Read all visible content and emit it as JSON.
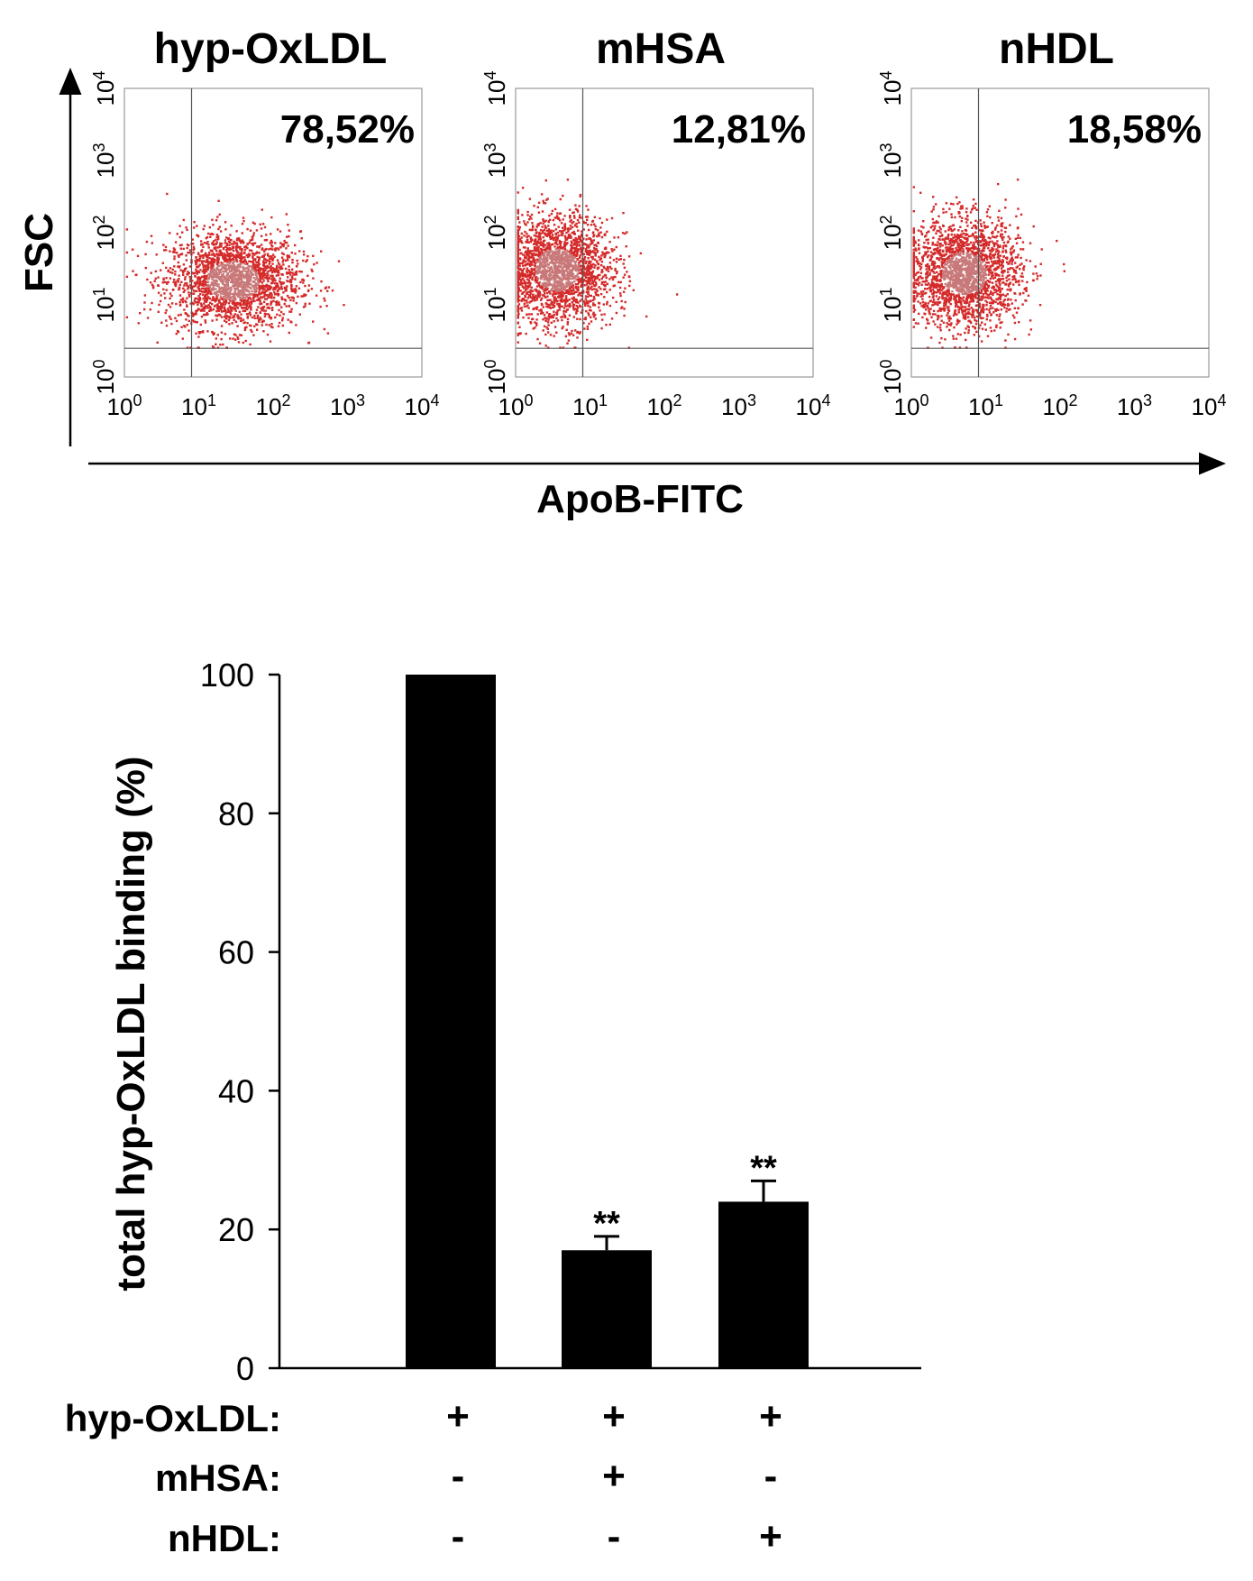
{
  "chart_data": [
    {
      "type": "scatter",
      "subtype": "flow-cytometry-dot-plots",
      "x_axis_label": "ApoB-FITC",
      "y_axis_label": "FSC",
      "x_scale": "log",
      "y_scale": "log",
      "xlim": [
        1,
        10000
      ],
      "ylim": [
        1,
        10000
      ],
      "tick_labels": [
        "10",
        "10",
        "10",
        "10",
        "10"
      ],
      "tick_exponents": [
        "0",
        "1",
        "2",
        "3",
        "4"
      ],
      "gate_x": 8,
      "gate_y": 2.5,
      "panels": [
        {
          "title": "hyp-OxLDL",
          "percent_label": "78,52%",
          "center_log_x": 1.45,
          "center_log_y": 1.35,
          "spread_log_x": 0.6,
          "spread_log_y": 0.45
        },
        {
          "title": "mHSA",
          "percent_label": "12,81%",
          "center_log_x": 0.55,
          "center_log_y": 1.5,
          "spread_log_x": 0.5,
          "spread_log_y": 0.5
        },
        {
          "title": "nHDL",
          "percent_label": "18,58%",
          "center_log_x": 0.7,
          "center_log_y": 1.45,
          "spread_log_x": 0.5,
          "spread_log_y": 0.5
        }
      ]
    },
    {
      "type": "bar",
      "ylabel": "total hyp-OxLDL binding (%)",
      "ylim": [
        0,
        100
      ],
      "yticks": [
        "0",
        "20",
        "40",
        "60",
        "80",
        "100"
      ],
      "ytick_values": [
        0,
        20,
        40,
        60,
        80,
        100
      ],
      "values": [
        100,
        17,
        24
      ],
      "errors": [
        0,
        2,
        3
      ],
      "significance": [
        "",
        "**",
        "**"
      ],
      "conditions": [
        {
          "label": "hyp-OxLDL:",
          "values": [
            "+",
            "+",
            "+"
          ]
        },
        {
          "label": "mHSA:",
          "values": [
            "-",
            "+",
            "-"
          ]
        },
        {
          "label": "nHDL:",
          "values": [
            "-",
            "-",
            "+"
          ]
        }
      ]
    }
  ],
  "colors": {
    "dot_red": "#d42a2a",
    "dot_core": "#c87878",
    "bar_fill": "#000000"
  }
}
